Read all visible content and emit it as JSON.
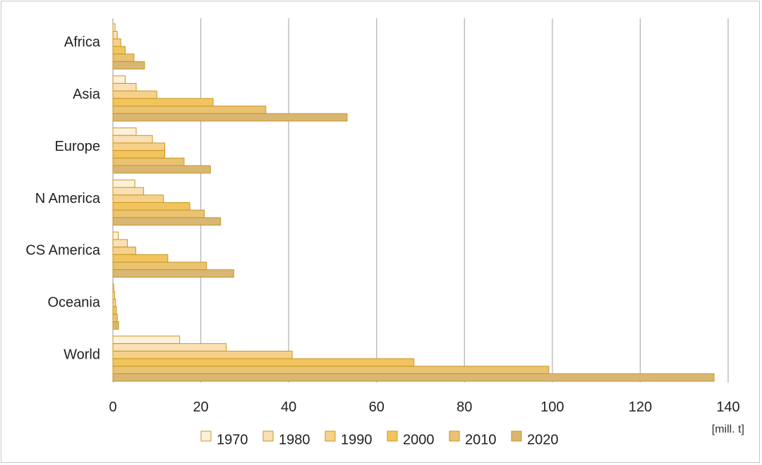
{
  "chart_data": {
    "type": "bar",
    "orientation": "horizontal",
    "title": "",
    "xlabel": "",
    "ylabel": "",
    "unit": "[mill. t]",
    "xlim": [
      0,
      140
    ],
    "xticks": [
      0,
      20,
      40,
      60,
      80,
      100,
      120,
      140
    ],
    "grid": "vertical",
    "legend_position": "bottom",
    "categories": [
      "Africa",
      "Asia",
      "Europe",
      "N America",
      "CS America",
      "Oceania",
      "World"
    ],
    "series": [
      {
        "name": "1970",
        "color": "#fdf1dc",
        "values": [
          0.5,
          2.8,
          5.3,
          5.0,
          1.2,
          0.2,
          15.2
        ]
      },
      {
        "name": "1980",
        "color": "#f9e0b7",
        "values": [
          1.0,
          5.3,
          9.0,
          7.0,
          3.3,
          0.4,
          25.8
        ]
      },
      {
        "name": "1990",
        "color": "#f6d18b",
        "values": [
          1.8,
          10.0,
          11.8,
          11.5,
          5.2,
          0.6,
          40.8
        ]
      },
      {
        "name": "2000",
        "color": "#f2c45e",
        "values": [
          2.8,
          22.8,
          11.8,
          17.5,
          12.5,
          0.8,
          68.5
        ]
      },
      {
        "name": "2010",
        "color": "#e9c272",
        "values": [
          4.8,
          34.8,
          16.2,
          20.8,
          21.3,
          1.0,
          99.2
        ]
      },
      {
        "name": "2020",
        "color": "#d9b673",
        "values": [
          7.2,
          53.3,
          22.2,
          24.5,
          27.5,
          1.3,
          136.8
        ]
      }
    ]
  }
}
